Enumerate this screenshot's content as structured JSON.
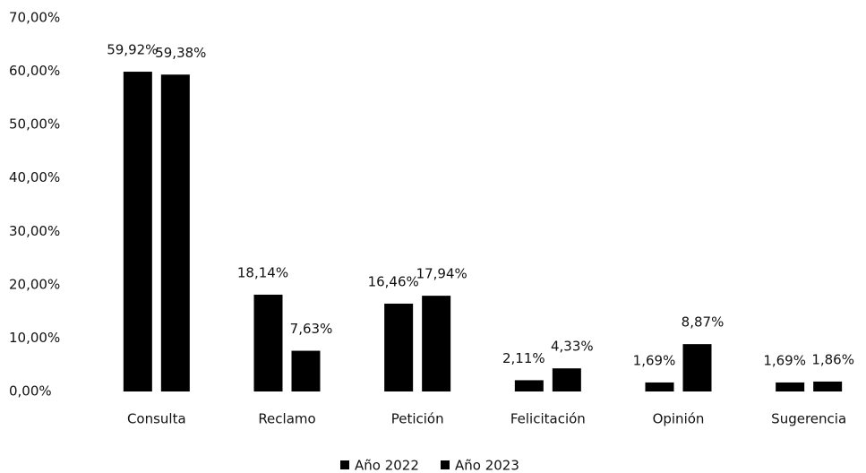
{
  "chart_data": {
    "type": "bar",
    "categories": [
      "Consulta",
      "Reclamo",
      "Petición",
      "Felicitación",
      "Opinión",
      "Sugerencia"
    ],
    "series": [
      {
        "name": "Año 2022",
        "color": "#000000",
        "values": [
          59.92,
          18.14,
          16.46,
          2.11,
          1.69,
          1.69
        ],
        "value_labels": [
          "59,92%",
          "18,14%",
          "16,46%",
          "2,11%",
          "1,69%",
          "1,69%"
        ]
      },
      {
        "name": "Año 2023",
        "color": "#000000",
        "values": [
          59.38,
          7.63,
          17.94,
          4.33,
          8.87,
          1.86
        ],
        "value_labels": [
          "59,38%",
          "7,63%",
          "17,94%",
          "4,33%",
          "8,87%",
          "1,86%"
        ]
      }
    ],
    "ylim": [
      0,
      70
    ],
    "yticks": [
      {
        "value": 0,
        "label": "0,00%"
      },
      {
        "value": 10,
        "label": "10,00%"
      },
      {
        "value": 20,
        "label": "20,00%"
      },
      {
        "value": 30,
        "label": "30,00%"
      },
      {
        "value": 40,
        "label": "40,00%"
      },
      {
        "value": 50,
        "label": "50,00%"
      },
      {
        "value": 60,
        "label": "60,00%"
      },
      {
        "value": 70,
        "label": "70,00%"
      }
    ],
    "grid": false,
    "legend": "bottom"
  }
}
